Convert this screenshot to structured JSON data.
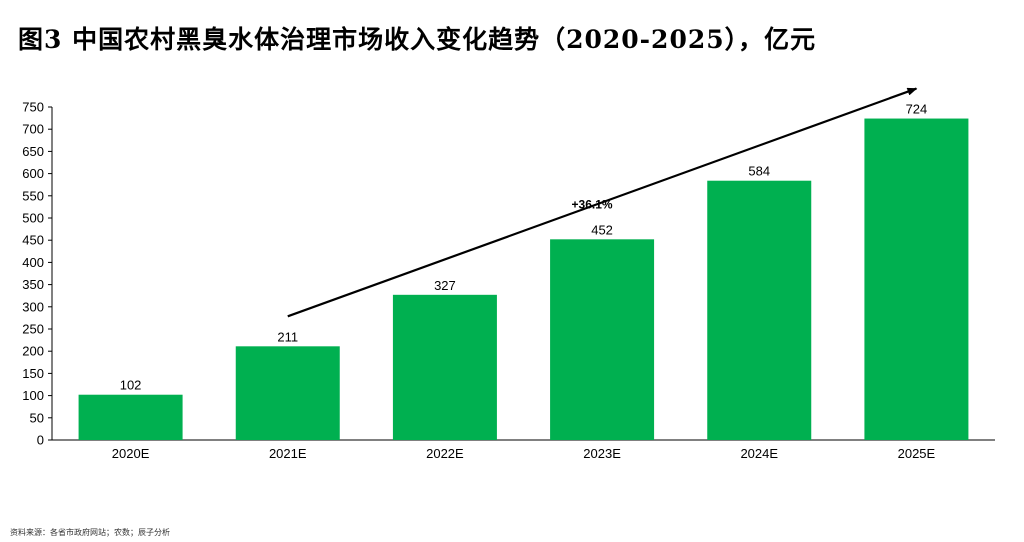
{
  "title": "图3 中国农村黑臭水体治理市场收入变化趋势（2020-2025），亿元",
  "source": "资料来源：各省市政府网站；农数；辰子分析",
  "chart_data": {
    "type": "bar",
    "categories": [
      "2020E",
      "2021E",
      "2022E",
      "2023E",
      "2024E",
      "2025E"
    ],
    "values": [
      102,
      211,
      327,
      452,
      584,
      724
    ],
    "title": "图3 中国农村黑臭水体治理市场收入变化趋势（2020-2025），亿元",
    "xlabel": "",
    "ylabel": "",
    "ylim": [
      0,
      750
    ],
    "yticks": [
      0,
      50,
      100,
      150,
      200,
      250,
      300,
      350,
      400,
      450,
      500,
      550,
      600,
      650,
      700,
      750
    ],
    "grid": false,
    "legend": "none",
    "bar_color": "#00b050",
    "annotations": [
      {
        "text": "+36.1%",
        "kind": "trend-arrow",
        "from_category": "2021E",
        "to_category": "2025E"
      }
    ]
  }
}
